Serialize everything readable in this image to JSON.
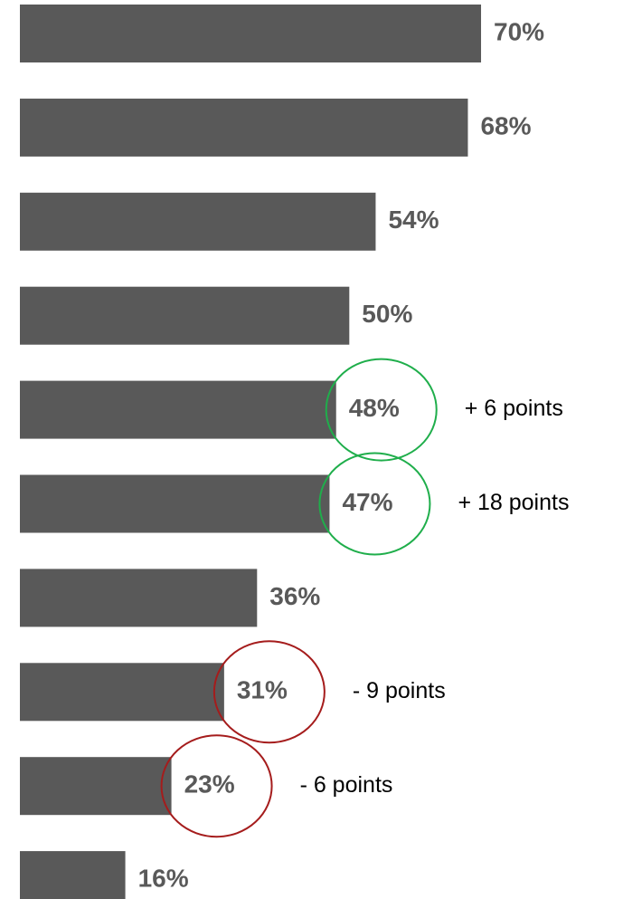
{
  "chart_data": {
    "type": "bar",
    "orientation": "horizontal",
    "color": "#595959",
    "values": [
      70,
      68,
      54,
      50,
      48,
      47,
      36,
      31,
      23,
      16
    ],
    "value_labels": [
      "70%",
      "68%",
      "54%",
      "50%",
      "48%",
      "47%",
      "36%",
      "31%",
      "23%",
      "16%"
    ],
    "annotations": [
      null,
      null,
      null,
      null,
      "+ 6 points",
      "+ 18 points",
      null,
      "- 9 points",
      "- 6 points",
      null
    ],
    "annotation_colors": [
      null,
      null,
      null,
      null,
      "#1fae4b",
      "#1fae4b",
      null,
      "#a51c1c",
      "#a51c1c",
      null
    ]
  }
}
